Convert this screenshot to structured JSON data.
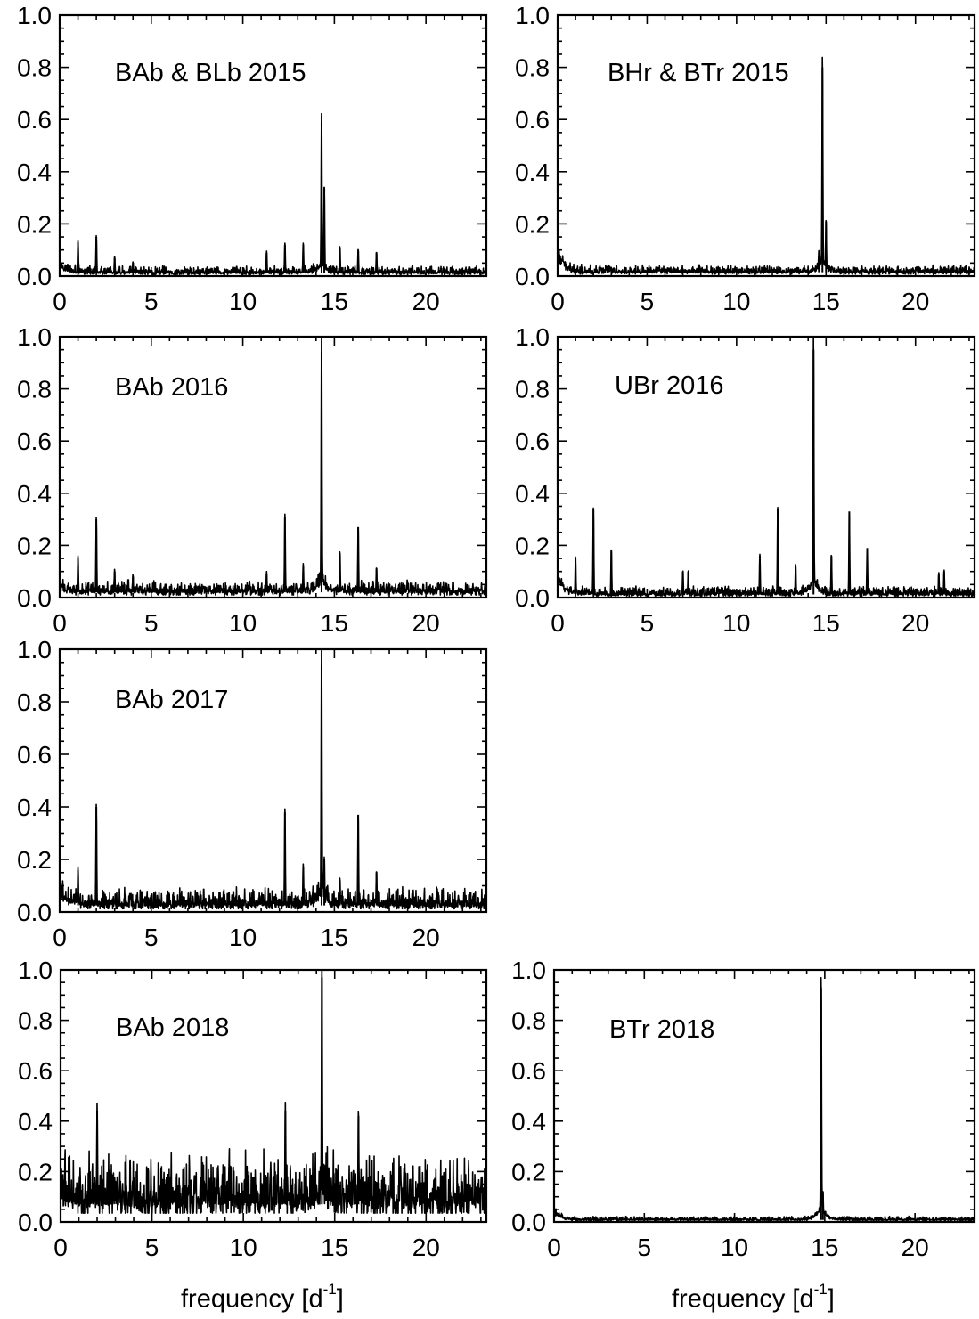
{
  "xlabel": {
    "pre": "frequency [d",
    "sup": "-1",
    "post": "]"
  },
  "chart_data": [
    {
      "type": "line",
      "title": "BAb & BLb 2015",
      "xlim": [
        0,
        23.3
      ],
      "ylim": [
        0,
        1.0
      ],
      "xticks": [
        "0",
        "5",
        "10",
        "15",
        "20"
      ],
      "yticks": [
        "0.0",
        "0.2",
        "0.4",
        "0.6",
        "0.8",
        "1.0"
      ],
      "noise": {
        "base": 0.012,
        "amp": 0.012,
        "lowfreq_excess": 0.04
      },
      "peaks": [
        {
          "f": 1.0,
          "a": 0.13
        },
        {
          "f": 2.0,
          "a": 0.15
        },
        {
          "f": 3.0,
          "a": 0.07
        },
        {
          "f": 4.0,
          "a": 0.05
        },
        {
          "f": 11.3,
          "a": 0.09
        },
        {
          "f": 12.3,
          "a": 0.12
        },
        {
          "f": 13.3,
          "a": 0.12
        },
        {
          "f": 14.3,
          "a": 0.59
        },
        {
          "f": 14.45,
          "a": 0.34
        },
        {
          "f": 15.3,
          "a": 0.11
        },
        {
          "f": 16.3,
          "a": 0.1
        },
        {
          "f": 17.3,
          "a": 0.09
        }
      ]
    },
    {
      "type": "line",
      "title": "BHr & BTr 2015",
      "xlim": [
        0,
        23.3
      ],
      "ylim": [
        0,
        1.0
      ],
      "xticks": [
        "0",
        "5",
        "10",
        "15",
        "20"
      ],
      "yticks": [
        "0.0",
        "0.2",
        "0.4",
        "0.6",
        "0.8",
        "1.0"
      ],
      "noise": {
        "base": 0.015,
        "amp": 0.012,
        "lowfreq_excess": 0.09
      },
      "peaks": [
        {
          "f": 14.6,
          "a": 0.07
        },
        {
          "f": 14.8,
          "a": 0.8
        },
        {
          "f": 15.0,
          "a": 0.21
        }
      ]
    },
    {
      "type": "line",
      "title": "BAb 2016",
      "xlim": [
        0,
        23.3
      ],
      "ylim": [
        0,
        1.0
      ],
      "xticks": [
        "0",
        "5",
        "10",
        "15",
        "20"
      ],
      "yticks": [
        "0.0",
        "0.2",
        "0.4",
        "0.6",
        "0.8",
        "1.0"
      ],
      "noise": {
        "base": 0.02,
        "amp": 0.02,
        "lowfreq_excess": 0.02
      },
      "peaks": [
        {
          "f": 1.0,
          "a": 0.15
        },
        {
          "f": 2.0,
          "a": 0.3
        },
        {
          "f": 3.0,
          "a": 0.1
        },
        {
          "f": 4.0,
          "a": 0.08
        },
        {
          "f": 11.3,
          "a": 0.09
        },
        {
          "f": 12.3,
          "a": 0.31
        },
        {
          "f": 13.3,
          "a": 0.12
        },
        {
          "f": 14.3,
          "a": 0.94
        },
        {
          "f": 15.3,
          "a": 0.17
        },
        {
          "f": 16.3,
          "a": 0.27
        },
        {
          "f": 17.3,
          "a": 0.11
        }
      ]
    },
    {
      "type": "line",
      "title": "UBr 2016",
      "xlim": [
        0,
        23.3
      ],
      "ylim": [
        0,
        1.0
      ],
      "xticks": [
        "0",
        "5",
        "10",
        "15",
        "20"
      ],
      "yticks": [
        "0.0",
        "0.2",
        "0.4",
        "0.6",
        "0.8",
        "1.0"
      ],
      "noise": {
        "base": 0.012,
        "amp": 0.014,
        "lowfreq_excess": 0.08
      },
      "peaks": [
        {
          "f": 1.0,
          "a": 0.15
        },
        {
          "f": 2.0,
          "a": 0.34
        },
        {
          "f": 3.0,
          "a": 0.18
        },
        {
          "f": 7.0,
          "a": 0.1
        },
        {
          "f": 7.3,
          "a": 0.1
        },
        {
          "f": 11.3,
          "a": 0.16
        },
        {
          "f": 12.3,
          "a": 0.34
        },
        {
          "f": 13.3,
          "a": 0.12
        },
        {
          "f": 14.3,
          "a": 0.95
        },
        {
          "f": 15.3,
          "a": 0.16
        },
        {
          "f": 16.3,
          "a": 0.33
        },
        {
          "f": 17.3,
          "a": 0.19
        },
        {
          "f": 21.3,
          "a": 0.09
        },
        {
          "f": 21.6,
          "a": 0.1
        }
      ]
    },
    {
      "type": "line",
      "title": "BAb 2017",
      "xlim": [
        0,
        23.3
      ],
      "ylim": [
        0,
        1.0
      ],
      "xticks": [
        "0",
        "5",
        "10",
        "15",
        "20"
      ],
      "yticks": [
        "0.0",
        "0.2",
        "0.4",
        "0.6",
        "0.8",
        "1.0"
      ],
      "noise": {
        "base": 0.025,
        "amp": 0.03,
        "lowfreq_excess": 0.08
      },
      "peaks": [
        {
          "f": 1.0,
          "a": 0.16
        },
        {
          "f": 2.0,
          "a": 0.4
        },
        {
          "f": 12.3,
          "a": 0.38
        },
        {
          "f": 13.3,
          "a": 0.17
        },
        {
          "f": 14.3,
          "a": 0.94
        },
        {
          "f": 14.45,
          "a": 0.2
        },
        {
          "f": 15.3,
          "a": 0.12
        },
        {
          "f": 16.3,
          "a": 0.37
        },
        {
          "f": 17.3,
          "a": 0.15
        }
      ]
    },
    {
      "type": "line",
      "title": "BAb 2018",
      "xlim": [
        0,
        23.3
      ],
      "ylim": [
        0,
        1.0
      ],
      "xticks": [
        "0",
        "5",
        "10",
        "15",
        "20"
      ],
      "yticks": [
        "0.0",
        "0.2",
        "0.4",
        "0.6",
        "0.8",
        "1.0"
      ],
      "noise": {
        "base": 0.07,
        "amp": 0.09,
        "lowfreq_excess": 0.04
      },
      "peaks": [
        {
          "f": 2.0,
          "a": 0.44
        },
        {
          "f": 12.3,
          "a": 0.44
        },
        {
          "f": 14.3,
          "a": 0.97
        },
        {
          "f": 16.3,
          "a": 0.42
        }
      ]
    },
    {
      "type": "line",
      "title": "BTr 2018",
      "xlim": [
        0,
        23.3
      ],
      "ylim": [
        0,
        1.0
      ],
      "xticks": [
        "0",
        "5",
        "10",
        "15",
        "20"
      ],
      "yticks": [
        "0.0",
        "0.2",
        "0.4",
        "0.6",
        "0.8",
        "1.0"
      ],
      "noise": {
        "base": 0.008,
        "amp": 0.006,
        "lowfreq_excess": 0.04
      },
      "peaks": [
        {
          "f": 14.8,
          "a": 0.93
        },
        {
          "f": 14.9,
          "a": 0.12
        }
      ]
    }
  ]
}
